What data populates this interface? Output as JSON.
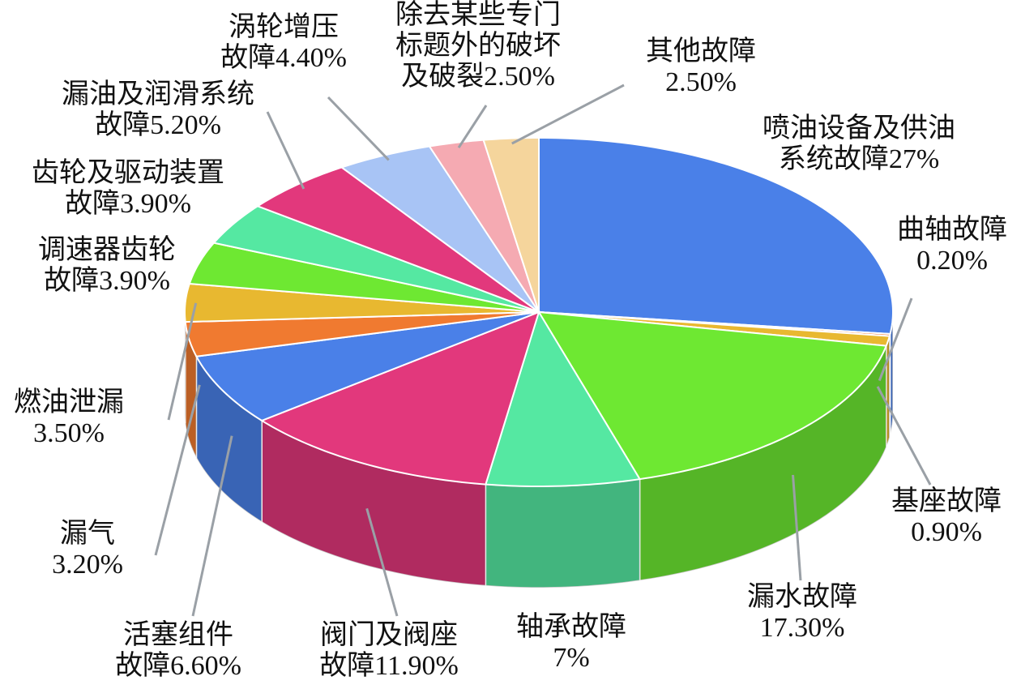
{
  "chart_data": {
    "type": "pie",
    "categories": [
      "喷油设备及供油系统故障",
      "曲轴故障",
      "基座故障",
      "漏水故障",
      "轴承故障",
      "阀门及阀座故障",
      "活塞组件故障",
      "漏气",
      "燃油泄漏",
      "调速器齿轮故障",
      "齿轮及驱动装置故障",
      "漏油及润滑系统故障",
      "涡轮增压故障",
      "除去某些专门标题外的破坏及破裂",
      "其他故障"
    ],
    "values": [
      27,
      0.2,
      0.9,
      17.3,
      7,
      11.9,
      6.6,
      3.2,
      3.5,
      3.9,
      3.9,
      5.2,
      4.4,
      2.5,
      2.5
    ],
    "value_labels": [
      "27%",
      "0.20%",
      "0.90%",
      "17.30%",
      "7%",
      "11.90%",
      "6.60%",
      "3.20%",
      "3.50%",
      "3.90%",
      "3.90%",
      "5.20%",
      "4.40%",
      "2.50%",
      "2.50%"
    ],
    "colors": [
      "#4a80e8",
      "#f07a30",
      "#e8b830",
      "#6ee832",
      "#55e8a2",
      "#e2387c",
      "#4a80e8",
      "#f07a30",
      "#e8b830",
      "#6ee832",
      "#55e8a2",
      "#e2387c",
      "#a8c4f5",
      "#f5aab2",
      "#f5d59c"
    ]
  }
}
